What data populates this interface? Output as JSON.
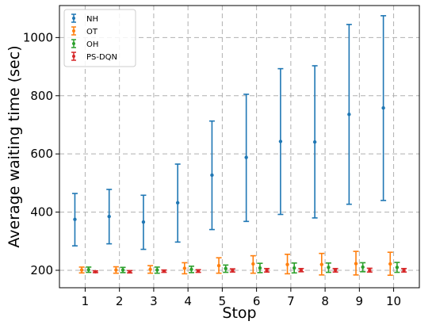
{
  "chart_data": {
    "type": "errorbar",
    "title": "",
    "xlabel": "Stop",
    "ylabel": "Average waiting time (sec)",
    "x": [
      1,
      2,
      3,
      4,
      5,
      6,
      7,
      8,
      9,
      10
    ],
    "xticks": [
      "1",
      "2",
      "3",
      "4",
      "5",
      "6",
      "7",
      "8",
      "9",
      "10"
    ],
    "xlim": [
      0.25,
      10.75
    ],
    "yticks": [
      200,
      400,
      600,
      800,
      1000
    ],
    "ylim": [
      140,
      1110
    ],
    "grid": true,
    "legend_position": "top-left",
    "series": [
      {
        "name": "NH",
        "color": "#1f77b4",
        "x_offset": -0.3,
        "values": [
          375,
          385,
          366,
          432,
          527,
          588,
          643,
          641,
          736,
          758
        ],
        "lower": [
          284,
          291,
          272,
          297,
          340,
          368,
          392,
          380,
          427,
          440
        ],
        "upper": [
          464,
          478,
          458,
          565,
          713,
          805,
          893,
          903,
          1045,
          1075
        ]
      },
      {
        "name": "OT",
        "color": "#ff7f0e",
        "x_offset": -0.1,
        "values": [
          201,
          201,
          203,
          207,
          216,
          222,
          220,
          220,
          223,
          222
        ],
        "lower": [
          191,
          190,
          190,
          188,
          190,
          190,
          188,
          184,
          184,
          183
        ],
        "upper": [
          211,
          212,
          216,
          226,
          243,
          250,
          255,
          258,
          265,
          262
        ]
      },
      {
        "name": "OH",
        "color": "#2ca02c",
        "x_offset": 0.1,
        "values": [
          202,
          201,
          201,
          203,
          206,
          208,
          208,
          210,
          211,
          210
        ],
        "lower": [
          193,
          192,
          190,
          192,
          193,
          192,
          191,
          193,
          195,
          193
        ],
        "upper": [
          211,
          210,
          211,
          214,
          218,
          224,
          225,
          225,
          226,
          227
        ]
      },
      {
        "name": "PS-DQN",
        "color": "#d62728",
        "x_offset": 0.3,
        "values": [
          195,
          195,
          197,
          198,
          200,
          200,
          200,
          201,
          200,
          200
        ],
        "lower": [
          192,
          191,
          193,
          193,
          194,
          194,
          195,
          194,
          194,
          194
        ],
        "upper": [
          198,
          199,
          201,
          202,
          205,
          206,
          206,
          206,
          207,
          206
        ]
      }
    ]
  }
}
